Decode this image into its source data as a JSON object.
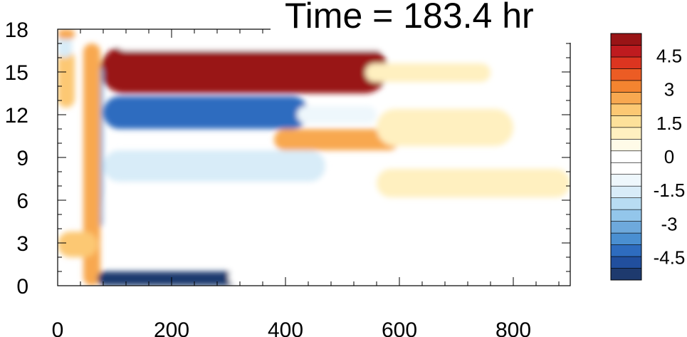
{
  "chart_data": {
    "type": "heatmap",
    "title": "Time = 183.4 hr",
    "xlabel": "",
    "ylabel": "",
    "xlim": [
      0,
      900
    ],
    "ylim": [
      0,
      18
    ],
    "x_ticks": [
      "0",
      "200",
      "400",
      "600",
      "800"
    ],
    "y_ticks": [
      "0",
      "3",
      "6",
      "9",
      "12",
      "15",
      "18"
    ],
    "colorbar": {
      "range": [
        -5.5,
        5.5
      ],
      "step": 0.5,
      "labels": [
        "4.5",
        "3",
        "1.5",
        "0",
        "-1.5",
        "-3",
        "-4.5"
      ],
      "colors": [
        "#1e3a6e",
        "#214f9e",
        "#2e6cbf",
        "#4a8fd1",
        "#6ea9dc",
        "#93c6eb",
        "#b8dcf2",
        "#d8ecf8",
        "#eef7fc",
        "#ffffff",
        "#ffffff",
        "#fffbe8",
        "#fff0c0",
        "#fde19a",
        "#fcc873",
        "#f8a850",
        "#f48430",
        "#ec5c24",
        "#dc3520",
        "#bf1b1f",
        "#991416"
      ]
    },
    "features": [
      {
        "name": "upper positive band",
        "x": [
          75,
          580
        ],
        "y": [
          13.5,
          16.8
        ],
        "value": 5.5
      },
      {
        "name": "upper positive fade",
        "x": [
          540,
          760
        ],
        "y": [
          14.3,
          15.6
        ],
        "value": 1.0
      },
      {
        "name": "negative band near 12",
        "x": [
          80,
          440
        ],
        "y": [
          11.0,
          13.3
        ],
        "value": -4.5
      },
      {
        "name": "negative fade near 12",
        "x": [
          420,
          560
        ],
        "y": [
          11.4,
          12.6
        ],
        "value": -1.2
      },
      {
        "name": "positive band near 10",
        "x": [
          380,
          600
        ],
        "y": [
          9.5,
          11.0
        ],
        "value": 3.0
      },
      {
        "name": "positive fade near 11",
        "x": [
          560,
          800
        ],
        "y": [
          9.8,
          12.4
        ],
        "value": 1.0
      },
      {
        "name": "negative band near 8",
        "x": [
          80,
          470
        ],
        "y": [
          7.3,
          9.5
        ],
        "value": -1.5
      },
      {
        "name": "positive patch near 7",
        "x": [
          560,
          900
        ],
        "y": [
          6.2,
          8.2
        ],
        "value": 1.2
      },
      {
        "name": "negative mid field",
        "x": [
          80,
          560
        ],
        "y": [
          3.5,
          7.0
        ],
        "value": -0.8
      },
      {
        "name": "vertical negative front",
        "x": [
          55,
          80
        ],
        "y": [
          4.0,
          15.5
        ],
        "value": -3.5
      },
      {
        "name": "vertical positive front",
        "x": [
          45,
          75
        ],
        "y": [
          0,
          17.0
        ],
        "value": 2.5
      },
      {
        "name": "bottom negative band",
        "x": [
          70,
          340
        ],
        "y": [
          0,
          1.0
        ],
        "value": -5.5
      },
      {
        "name": "bottom negative fade",
        "x": [
          300,
          900
        ],
        "y": [
          0,
          1.2
        ],
        "value": -0.8
      },
      {
        "name": "left positive strip",
        "x": [
          0,
          30
        ],
        "y": [
          12.5,
          16.5
        ],
        "value": 2.0
      },
      {
        "name": "left negative strip",
        "x": [
          0,
          25
        ],
        "y": [
          16.0,
          18.0
        ],
        "value": -1.5
      },
      {
        "name": "top positive strip",
        "x": [
          0,
          30
        ],
        "y": [
          17.3,
          18.0
        ],
        "value": 2.5
      },
      {
        "name": "low positive patch",
        "x": [
          0,
          70
        ],
        "y": [
          2.0,
          3.8
        ],
        "value": 2.0
      },
      {
        "name": "top negative strip",
        "x": [
          100,
          900
        ],
        "y": [
          16.5,
          18.0
        ],
        "value": -0.8
      }
    ]
  }
}
